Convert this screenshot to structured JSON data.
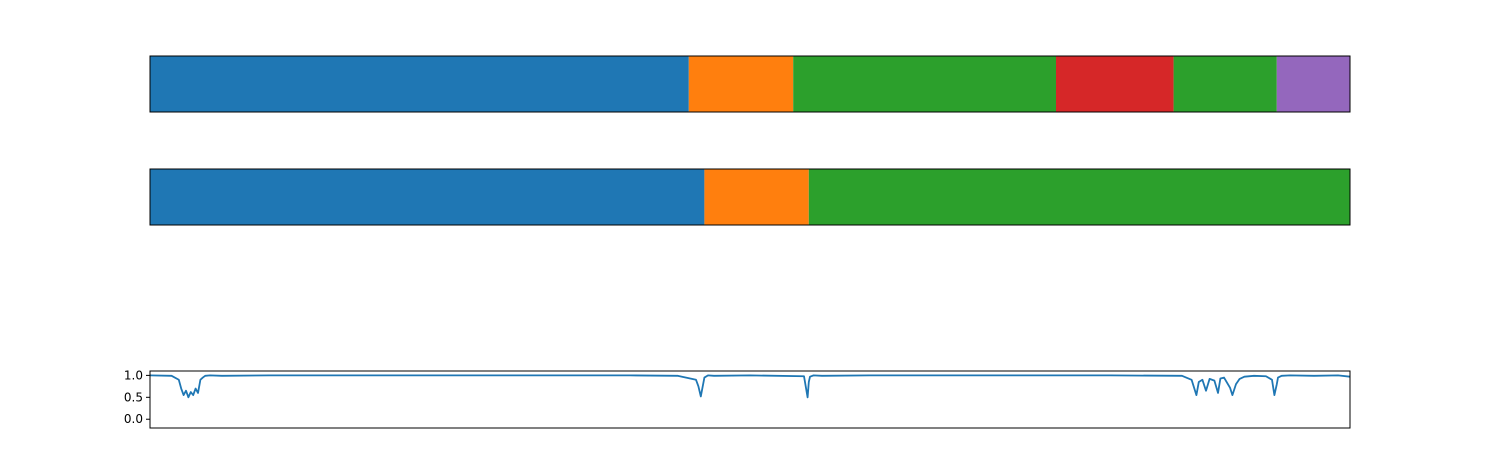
{
  "chart_data": [
    {
      "type": "segmentation-bar",
      "segments": [
        {
          "start": 0.0,
          "end": 0.449,
          "color": "#1f77b4"
        },
        {
          "start": 0.449,
          "end": 0.536,
          "color": "#ff7f0e"
        },
        {
          "start": 0.536,
          "end": 0.755,
          "color": "#2ca02c"
        },
        {
          "start": 0.755,
          "end": 0.853,
          "color": "#d62728"
        },
        {
          "start": 0.853,
          "end": 0.939,
          "color": "#2ca02c"
        },
        {
          "start": 0.939,
          "end": 1.0,
          "color": "#9467bd"
        }
      ],
      "xlim": [
        0,
        1
      ],
      "axes_visible": false
    },
    {
      "type": "segmentation-bar",
      "segments": [
        {
          "start": 0.0,
          "end": 0.462,
          "color": "#1f77b4"
        },
        {
          "start": 0.462,
          "end": 0.549,
          "color": "#ff7f0e"
        },
        {
          "start": 0.549,
          "end": 1.0,
          "color": "#2ca02c"
        }
      ],
      "xlim": [
        0,
        1
      ],
      "axes_visible": false
    },
    {
      "type": "line",
      "xlim": [
        0,
        1
      ],
      "ylim": [
        -0.2,
        1.1
      ],
      "yticks": [
        0.0,
        0.5,
        1.0
      ],
      "ytick_labels": [
        "0.0",
        "0.5",
        "1.0"
      ],
      "x_ticks_visible": false,
      "series": [
        {
          "color": "#1f77b4",
          "x": [
            0.0,
            0.018,
            0.024,
            0.026,
            0.028,
            0.03,
            0.032,
            0.034,
            0.036,
            0.038,
            0.04,
            0.042,
            0.044,
            0.046,
            0.05,
            0.06,
            0.1,
            0.2,
            0.3,
            0.4,
            0.44,
            0.455,
            0.457,
            0.459,
            0.462,
            0.465,
            0.47,
            0.5,
            0.545,
            0.548,
            0.549,
            0.55,
            0.553,
            0.56,
            0.6,
            0.7,
            0.8,
            0.86,
            0.868,
            0.872,
            0.874,
            0.877,
            0.88,
            0.883,
            0.887,
            0.89,
            0.892,
            0.895,
            0.9,
            0.902,
            0.905,
            0.908,
            0.912,
            0.92,
            0.93,
            0.935,
            0.937,
            0.939,
            0.94,
            0.943,
            0.95,
            0.97,
            0.99,
            1.0
          ],
          "y": [
            1.0,
            0.99,
            0.9,
            0.7,
            0.55,
            0.65,
            0.5,
            0.62,
            0.55,
            0.7,
            0.6,
            0.9,
            0.95,
            0.99,
            1.0,
            0.99,
            1.0,
            1.0,
            1.0,
            1.0,
            0.99,
            0.9,
            0.75,
            0.52,
            0.95,
            1.0,
            0.99,
            1.0,
            0.98,
            0.5,
            0.85,
            0.97,
            1.0,
            0.99,
            1.0,
            1.0,
            1.0,
            0.99,
            0.9,
            0.55,
            0.85,
            0.9,
            0.65,
            0.92,
            0.88,
            0.6,
            0.93,
            0.95,
            0.72,
            0.55,
            0.8,
            0.92,
            0.97,
            0.99,
            0.98,
            0.9,
            0.55,
            0.8,
            0.95,
            0.99,
            1.0,
            0.99,
            1.0,
            0.97
          ]
        }
      ]
    }
  ]
}
